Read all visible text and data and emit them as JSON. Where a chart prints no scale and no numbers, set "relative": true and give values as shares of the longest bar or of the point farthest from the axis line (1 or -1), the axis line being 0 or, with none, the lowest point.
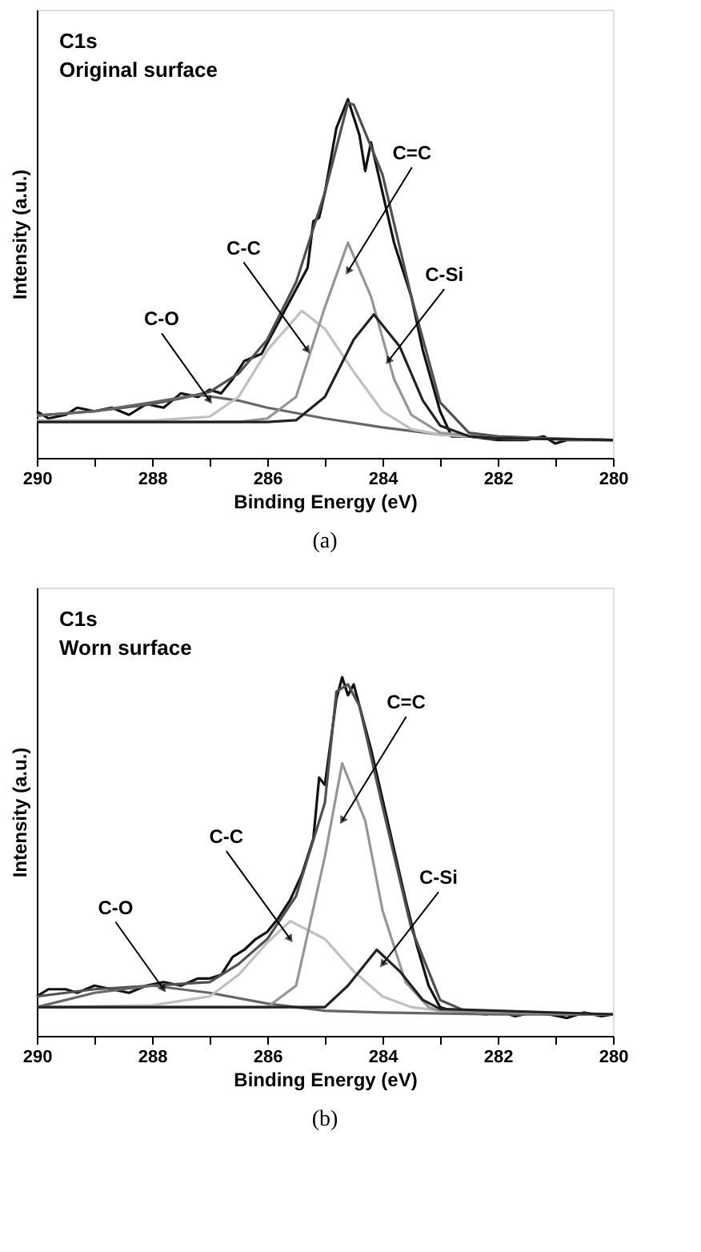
{
  "chart_data": [
    {
      "type": "line",
      "title": "C1s",
      "subtitle": "Original surface",
      "xlabel": "Binding Energy (eV)",
      "ylabel": "Intensity (a.u.)",
      "relative": true,
      "grid": false,
      "marker": "none",
      "line_style": "solid",
      "tick_labels": "x",
      "xlim": [
        290,
        280
      ],
      "xticks": [
        290,
        {
          "value": 289,
          "label": null
        },
        288,
        {
          "value": 287,
          "label": null
        },
        286,
        {
          "value": 285,
          "label": null
        },
        284,
        {
          "value": 283,
          "label": null
        },
        282,
        {
          "value": 281,
          "label": null
        },
        280
      ],
      "series": [
        {
          "color": "#111111",
          "x": [
            290,
            289.8,
            289.5,
            289.3,
            289,
            288.7,
            288.4,
            288.1,
            287.8,
            287.5,
            287.2,
            287,
            286.8,
            286.6,
            286.4,
            286.1,
            285.8,
            285.5,
            285.3,
            285.2,
            285.1,
            285,
            284.8,
            284.6,
            284.4,
            284.3,
            284.2,
            284,
            283.8,
            283.5,
            283.3,
            283,
            282.8,
            282.5,
            282,
            281.5,
            281.2,
            281,
            280.8,
            280.5,
            280
          ],
          "values": [
            0.13,
            0.11,
            0.12,
            0.14,
            0.13,
            0.14,
            0.12,
            0.15,
            0.14,
            0.18,
            0.17,
            0.19,
            0.18,
            0.22,
            0.27,
            0.29,
            0.38,
            0.47,
            0.53,
            0.66,
            0.67,
            0.74,
            0.92,
            1.0,
            0.9,
            0.8,
            0.88,
            0.74,
            0.6,
            0.45,
            0.3,
            0.13,
            0.06,
            0.06,
            0.05,
            0.05,
            0.06,
            0.04,
            0.05,
            0.05,
            0.05
          ]
        },
        {
          "color": "#505050",
          "x": [
            290,
            289,
            288,
            287.5,
            287,
            286.5,
            286,
            285.5,
            285,
            284.6,
            284.5,
            284,
            283.5,
            283,
            282.5,
            282,
            281,
            280
          ],
          "values": [
            0.118,
            0.13,
            0.15,
            0.166,
            0.184,
            0.235,
            0.33,
            0.49,
            0.74,
            0.99,
            0.985,
            0.79,
            0.45,
            0.155,
            0.07,
            0.06,
            0.054,
            0.05
          ]
        },
        {
          "color": "#666666",
          "x": [
            290,
            289,
            288,
            287.2,
            286.5,
            286,
            285,
            284,
            283,
            282,
            280
          ],
          "values": [
            0.118,
            0.13,
            0.155,
            0.176,
            0.16,
            0.14,
            0.11,
            0.085,
            0.065,
            0.055,
            0.05
          ]
        },
        {
          "color": "#c0c0c0",
          "x": [
            290,
            288,
            287,
            286.5,
            286,
            285.4,
            285,
            284.5,
            284,
            283.5,
            283,
            282,
            280
          ],
          "values": [
            0.104,
            0.104,
            0.115,
            0.17,
            0.3,
            0.41,
            0.36,
            0.24,
            0.13,
            0.08,
            0.065,
            0.055,
            0.05
          ]
        },
        {
          "color": "#969696",
          "x": [
            290,
            286.5,
            286,
            285.5,
            285,
            284.6,
            284.2,
            283.8,
            283.5,
            283,
            282,
            280
          ],
          "values": [
            0.1,
            0.1,
            0.11,
            0.17,
            0.42,
            0.6,
            0.45,
            0.22,
            0.12,
            0.07,
            0.055,
            0.05
          ]
        },
        {
          "color": "#222222",
          "x": [
            290,
            286,
            285.5,
            285,
            284.5,
            284.15,
            283.7,
            283.3,
            283,
            282.5,
            282,
            280
          ],
          "values": [
            0.1,
            0.1,
            0.105,
            0.17,
            0.33,
            0.4,
            0.31,
            0.16,
            0.09,
            0.06,
            0.055,
            0.05
          ]
        }
      ],
      "annotations": [
        {
          "text": "C-O",
          "x": 287.0,
          "y": 0.16
        },
        {
          "text": "C-C",
          "x": 285.3,
          "y": 0.3
        },
        {
          "text": "C=C",
          "x": 284.6,
          "y": 0.52
        },
        {
          "text": "C-Si",
          "x": 283.9,
          "y": 0.27
        },
        "(a)"
      ]
    },
    {
      "type": "line",
      "title": "C1s",
      "subtitle": "Worn surface",
      "xlabel": "Binding Energy (eV)",
      "ylabel": "Intensity (a.u.)",
      "relative": true,
      "grid": false,
      "marker": "none",
      "line_style": "solid",
      "tick_labels": "x",
      "xlim": [
        290,
        280
      ],
      "xticks": [
        290,
        {
          "value": 289,
          "label": null
        },
        288,
        {
          "value": 287,
          "label": null
        },
        286,
        {
          "value": 285,
          "label": null
        },
        284,
        {
          "value": 283,
          "label": null
        },
        282,
        {
          "value": 281,
          "label": null
        },
        280
      ],
      "series": [
        {
          "color": "#111111",
          "x": [
            290,
            289.8,
            289.5,
            289.3,
            289,
            288.7,
            288.4,
            288.1,
            287.8,
            287.5,
            287.2,
            287,
            286.8,
            286.6,
            286.4,
            286.2,
            286,
            285.8,
            285.6,
            285.4,
            285.2,
            285.1,
            285,
            284.9,
            284.8,
            284.7,
            284.6,
            284.5,
            284.4,
            284.2,
            284,
            283.8,
            283.6,
            283.4,
            283.2,
            283,
            282.8,
            282.5,
            282.2,
            282,
            281.7,
            281.4,
            281.1,
            280.8,
            280.5,
            280.2,
            280
          ],
          "values": [
            0.11,
            0.13,
            0.13,
            0.12,
            0.14,
            0.13,
            0.12,
            0.14,
            0.15,
            0.14,
            0.16,
            0.16,
            0.17,
            0.22,
            0.24,
            0.27,
            0.29,
            0.33,
            0.38,
            0.45,
            0.55,
            0.72,
            0.7,
            0.82,
            0.94,
            1.0,
            0.95,
            0.98,
            0.92,
            0.8,
            0.66,
            0.52,
            0.38,
            0.25,
            0.14,
            0.08,
            0.07,
            0.065,
            0.06,
            0.07,
            0.055,
            0.065,
            0.06,
            0.05,
            0.065,
            0.055,
            0.06
          ]
        },
        {
          "color": "#505050",
          "x": [
            290,
            289,
            288,
            287,
            286.5,
            286,
            285.5,
            285,
            284.8,
            284.6,
            284.4,
            284,
            283.5,
            283,
            282.5,
            282,
            281,
            280
          ],
          "values": [
            0.11,
            0.13,
            0.14,
            0.15,
            0.2,
            0.27,
            0.39,
            0.65,
            0.96,
            0.98,
            0.92,
            0.64,
            0.3,
            0.1,
            0.065,
            0.065,
            0.06,
            0.06
          ]
        },
        {
          "color": "#666666",
          "x": [
            290,
            289,
            288,
            287,
            286,
            285,
            284,
            282,
            280
          ],
          "values": [
            0.08,
            0.12,
            0.14,
            0.12,
            0.09,
            0.07,
            0.065,
            0.06,
            0.06
          ]
        },
        {
          "color": "#c0c0c0",
          "x": [
            290,
            288,
            287,
            286.5,
            286,
            285.6,
            285,
            284.5,
            284,
            283.5,
            283,
            280
          ],
          "values": [
            0.08,
            0.085,
            0.11,
            0.17,
            0.26,
            0.32,
            0.27,
            0.18,
            0.11,
            0.08,
            0.07,
            0.06
          ]
        },
        {
          "color": "#969696",
          "x": [
            290,
            286,
            285.5,
            285,
            284.7,
            284.3,
            284,
            283.6,
            283.2,
            283,
            280
          ],
          "values": [
            0.08,
            0.08,
            0.14,
            0.5,
            0.76,
            0.6,
            0.35,
            0.15,
            0.08,
            0.07,
            0.06
          ]
        },
        {
          "color": "#222222",
          "x": [
            290,
            285,
            284.6,
            284.1,
            283.7,
            283.3,
            283,
            280
          ],
          "values": [
            0.08,
            0.08,
            0.14,
            0.24,
            0.18,
            0.1,
            0.075,
            0.06
          ]
        }
      ],
      "annotations": [
        {
          "text": "C-O",
          "x": 287.8,
          "y": 0.13
        },
        {
          "text": "C-C",
          "x": 285.6,
          "y": 0.27
        },
        {
          "text": "C=C",
          "x": 284.7,
          "y": 0.6
        },
        {
          "text": "C-Si",
          "x": 284.0,
          "y": 0.2
        },
        "(b)"
      ]
    }
  ]
}
